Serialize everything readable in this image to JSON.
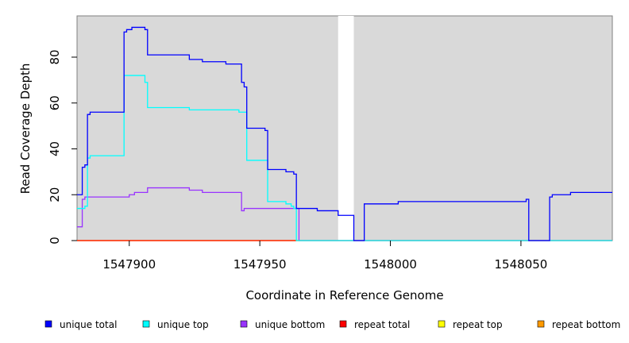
{
  "chart_data": {
    "type": "line",
    "title": "",
    "xlabel": "Coordinate in Reference Genome",
    "ylabel": "Read Coverage Depth",
    "xlim": [
      1547880,
      1548085
    ],
    "ylim": [
      0,
      98
    ],
    "xticks": [
      1547900,
      1547950,
      1548000,
      1548050
    ],
    "yticks": [
      0,
      20,
      40,
      60,
      80
    ],
    "background": "#d9d9d9",
    "grid": false,
    "legend_position": "bottom",
    "gap_region": [
      1547980,
      1547986
    ],
    "series": [
      {
        "name": "unique total",
        "color": "#0000ff",
        "x": [
          1547880,
          1547882,
          1547883,
          1547884,
          1547885,
          1547886,
          1547898,
          1547899,
          1547901,
          1547906,
          1547907,
          1547922,
          1547923,
          1547928,
          1547937,
          1547943,
          1547944,
          1547945,
          1547952,
          1547953,
          1547960,
          1547963,
          1547964,
          1547972,
          1547980,
          1547986,
          1547990,
          1548003,
          1548052,
          1548053,
          1548061,
          1548062,
          1548069,
          1548085
        ],
        "y": [
          20,
          32,
          33,
          55,
          56,
          56,
          91,
          92,
          93,
          92,
          81,
          81,
          79,
          78,
          77,
          69,
          67,
          49,
          48,
          31,
          30,
          29,
          14,
          13,
          11,
          0,
          16,
          17,
          18,
          0,
          19,
          20,
          21,
          21
        ]
      },
      {
        "name": "unique top",
        "color": "#00ffff",
        "x": [
          1547880,
          1547883,
          1547884,
          1547885,
          1547886,
          1547898,
          1547906,
          1547907,
          1547922,
          1547923,
          1547942,
          1547944,
          1547945,
          1547952,
          1547953,
          1547960,
          1547962,
          1547963,
          1547964,
          1548085
        ],
        "y": [
          14,
          15,
          36,
          37,
          37,
          72,
          69,
          58,
          58,
          57,
          56,
          56,
          35,
          35,
          17,
          16,
          15,
          14,
          0,
          0
        ]
      },
      {
        "name": "unique bottom",
        "color": "#9933ff",
        "x": [
          1547880,
          1547882,
          1547883,
          1547884,
          1547900,
          1547902,
          1547907,
          1547923,
          1547928,
          1547942,
          1547943,
          1547944,
          1547945,
          1547964,
          1547965,
          1548085
        ],
        "y": [
          6,
          18,
          19,
          19,
          20,
          21,
          23,
          22,
          21,
          21,
          13,
          14,
          14,
          14,
          0,
          0
        ]
      },
      {
        "name": "repeat total",
        "color": "#ff0000",
        "x": [
          1547880,
          1548085
        ],
        "y": [
          0,
          0
        ]
      },
      {
        "name": "repeat top",
        "color": "#ffff00",
        "x": [
          1547880,
          1548085
        ],
        "y": [
          0,
          0
        ]
      },
      {
        "name": "repeat bottom",
        "color": "#ff9900",
        "x": [
          1547880,
          1547964
        ],
        "y": [
          0,
          0
        ]
      }
    ]
  }
}
